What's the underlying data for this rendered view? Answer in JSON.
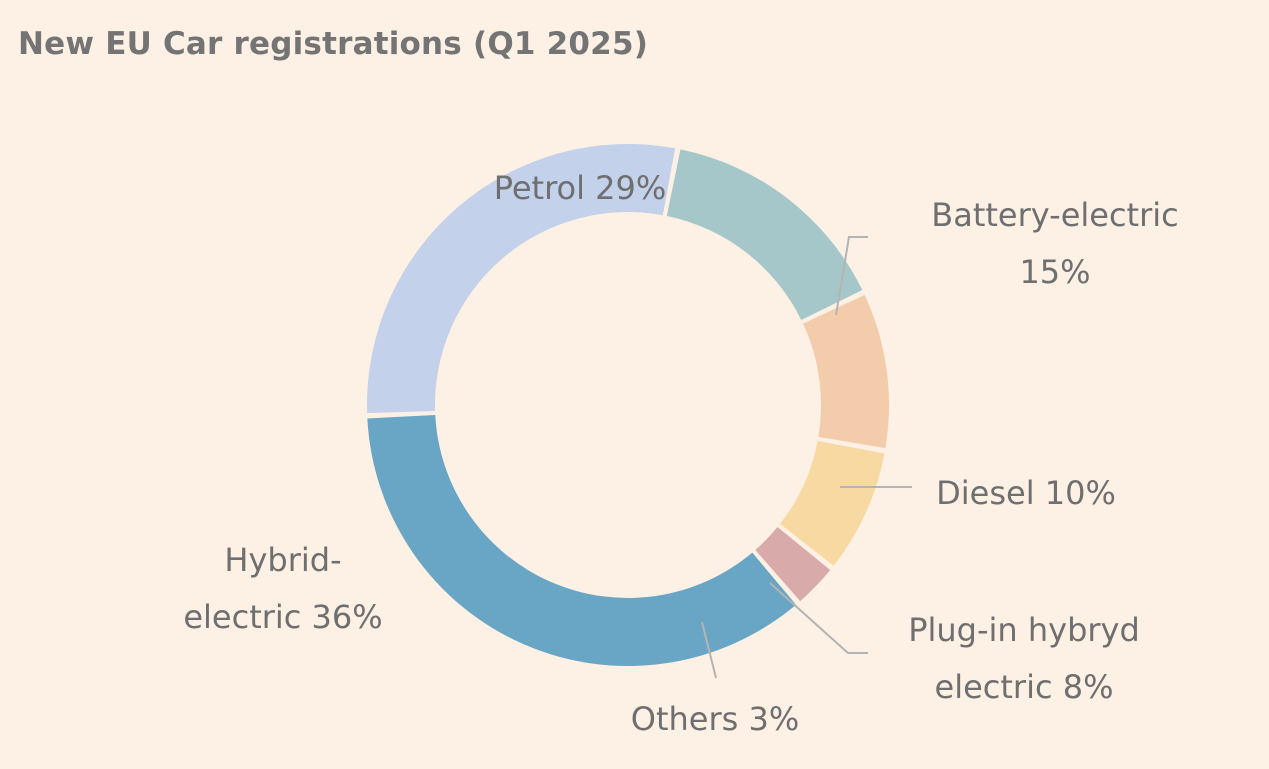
{
  "chart_data": {
    "type": "pie",
    "variant": "donut",
    "title": "New EU Car registrations (Q1 2025)",
    "slices": [
      {
        "name": "Battery-electric",
        "value": 15,
        "color": "#A6C7C9",
        "label_lines": [
          "Battery-electric",
          "15%"
        ]
      },
      {
        "name": "Diesel",
        "value": 10,
        "color": "#F3CCAB",
        "label_lines": [
          "Diesel 10%"
        ]
      },
      {
        "name": "Plug-in hybryd electric",
        "value": 8,
        "color": "#F8D9A2",
        "label_lines": [
          "Plug-in hybryd",
          "electric 8%"
        ]
      },
      {
        "name": "Others",
        "value": 3,
        "color": "#D8AAAA",
        "label_lines": [
          "Others 3%"
        ]
      },
      {
        "name": "Hybrid-electric",
        "value": 36,
        "color": "#69A5C4",
        "label_lines": [
          "Hybrid-",
          "electric 36%"
        ]
      },
      {
        "name": "Petrol",
        "value": 29,
        "color": "#C3D1EA",
        "label_lines": [
          "Petrol 29%"
        ]
      }
    ],
    "start_angle_deg": 11,
    "direction": "clockwise",
    "unit": "%"
  }
}
